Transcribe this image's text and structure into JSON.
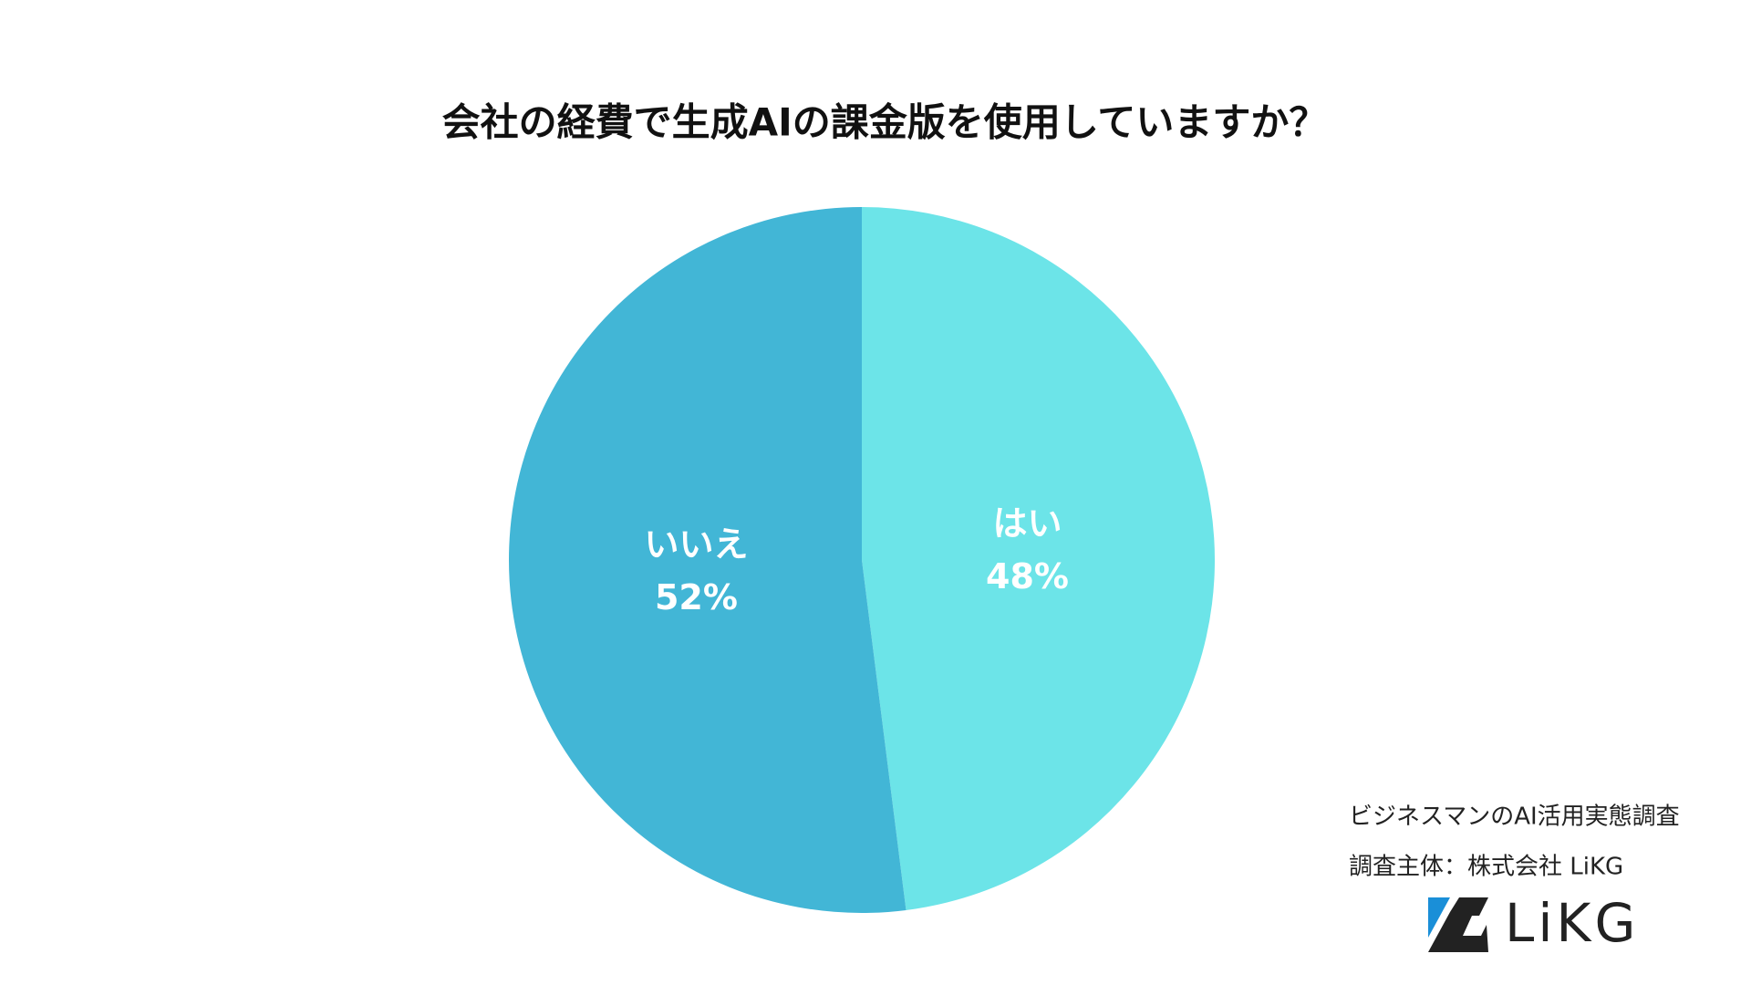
{
  "chart_data": {
    "type": "pie",
    "title": "会社の経費で生成AIの課金版を使用していますか？",
    "categories": [
      "はい",
      "いいえ"
    ],
    "values": [
      48,
      52
    ],
    "value_labels": [
      "48%",
      "52%"
    ],
    "colors": [
      "#6ce4e8",
      "#42b6d6"
    ]
  },
  "footer": {
    "survey": "ビジネスマンのAI活用実態調査",
    "organizer": "調査主体：株式会社 LiKG",
    "logo": "LiKG"
  }
}
